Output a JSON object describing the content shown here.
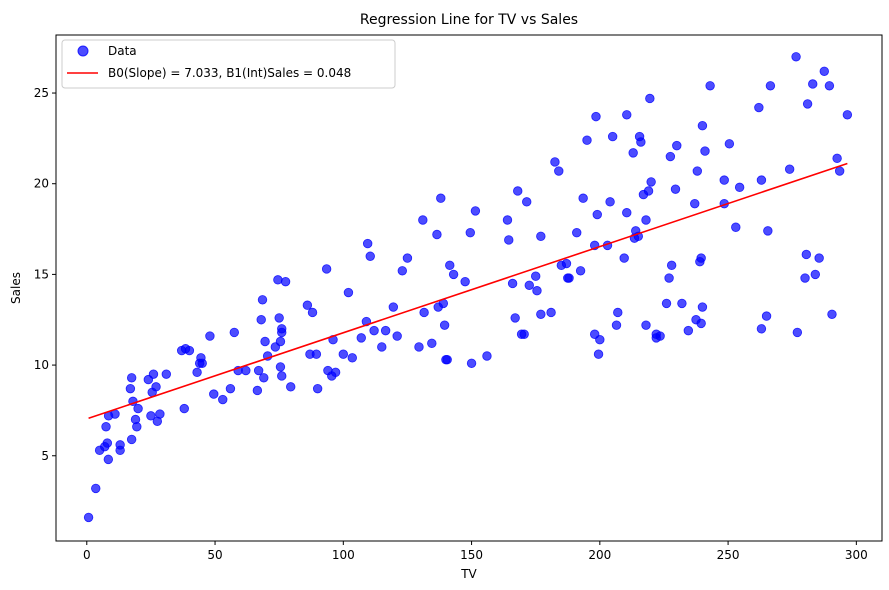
{
  "chart_data": {
    "type": "scatter",
    "title": "Regression Line for TV vs Sales",
    "xlabel": "TV",
    "ylabel": "Sales",
    "xlim": [
      -12,
      310
    ],
    "ylim": [
      0.3,
      28.2
    ],
    "xticks": [
      0,
      50,
      100,
      150,
      200,
      250,
      300
    ],
    "yticks": [
      5,
      10,
      15,
      20,
      25
    ],
    "grid": false,
    "legend_position": "top-left",
    "series": [
      {
        "name": "Data",
        "kind": "scatter",
        "color": "#0000ff",
        "points": [
          [
            0.7,
            1.6
          ],
          [
            3.5,
            3.2
          ],
          [
            5,
            5.3
          ],
          [
            7,
            5.5
          ],
          [
            7.5,
            6.6
          ],
          [
            8,
            5.7
          ],
          [
            8.4,
            4.8
          ],
          [
            8.5,
            7.2
          ],
          [
            11,
            7.3
          ],
          [
            13,
            5.3
          ],
          [
            13,
            5.6
          ],
          [
            17,
            8.7
          ],
          [
            17.5,
            9.3
          ],
          [
            17.5,
            5.9
          ],
          [
            18,
            8.0
          ],
          [
            19,
            7.0
          ],
          [
            19.5,
            6.6
          ],
          [
            20,
            7.6
          ],
          [
            24,
            9.2
          ],
          [
            25,
            7.2
          ],
          [
            25.5,
            8.5
          ],
          [
            26,
            9.5
          ],
          [
            27,
            8.8
          ],
          [
            27.5,
            6.9
          ],
          [
            28.5,
            7.3
          ],
          [
            31,
            9.5
          ],
          [
            37,
            10.8
          ],
          [
            38,
            7.6
          ],
          [
            38.5,
            10.9
          ],
          [
            40,
            10.8
          ],
          [
            43,
            9.6
          ],
          [
            44,
            10.1
          ],
          [
            44.5,
            10.4
          ],
          [
            45,
            10.1
          ],
          [
            48,
            11.6
          ],
          [
            49.5,
            8.4
          ],
          [
            53,
            8.1
          ],
          [
            56,
            8.7
          ],
          [
            57.5,
            11.8
          ],
          [
            59,
            9.7
          ],
          [
            62,
            9.7
          ],
          [
            66.5,
            8.6
          ],
          [
            67,
            9.7
          ],
          [
            68,
            12.5
          ],
          [
            68.5,
            13.6
          ],
          [
            69,
            9.3
          ],
          [
            69.5,
            11.3
          ],
          [
            70.5,
            10.5
          ],
          [
            73.5,
            11.0
          ],
          [
            74.5,
            14.7
          ],
          [
            75,
            12.6
          ],
          [
            75.5,
            11.3
          ],
          [
            75.5,
            9.9
          ],
          [
            76,
            9.4
          ],
          [
            76,
            11.8
          ],
          [
            76,
            12.0
          ],
          [
            77.5,
            14.6
          ],
          [
            79.5,
            8.8
          ],
          [
            86,
            13.3
          ],
          [
            87,
            10.6
          ],
          [
            88,
            12.9
          ],
          [
            89.5,
            10.6
          ],
          [
            90,
            8.7
          ],
          [
            93.5,
            15.3
          ],
          [
            94,
            9.7
          ],
          [
            95.5,
            9.4
          ],
          [
            96,
            11.4
          ],
          [
            97,
            9.6
          ],
          [
            100,
            10.6
          ],
          [
            102,
            14.0
          ],
          [
            103.5,
            10.4
          ],
          [
            107,
            11.5
          ],
          [
            109,
            12.4
          ],
          [
            109.5,
            16.7
          ],
          [
            110.5,
            16.0
          ],
          [
            112,
            11.9
          ],
          [
            115,
            11.0
          ],
          [
            116.5,
            11.9
          ],
          [
            119.5,
            13.2
          ],
          [
            121,
            11.6
          ],
          [
            123,
            15.2
          ],
          [
            125,
            15.9
          ],
          [
            129.5,
            11.0
          ],
          [
            131,
            18.0
          ],
          [
            131.5,
            12.9
          ],
          [
            134.5,
            11.2
          ],
          [
            136.5,
            17.2
          ],
          [
            137,
            13.2
          ],
          [
            138,
            19.2
          ],
          [
            139,
            13.4
          ],
          [
            139.5,
            12.2
          ],
          [
            140,
            10.3
          ],
          [
            140.5,
            10.3
          ],
          [
            141.5,
            15.5
          ],
          [
            143,
            15.0
          ],
          [
            147.5,
            14.6
          ],
          [
            149.5,
            17.3
          ],
          [
            150,
            10.1
          ],
          [
            151.5,
            18.5
          ],
          [
            156,
            10.5
          ],
          [
            164,
            18.0
          ],
          [
            164.5,
            16.9
          ],
          [
            166,
            14.5
          ],
          [
            167,
            12.6
          ],
          [
            168,
            19.6
          ],
          [
            169.5,
            11.7
          ],
          [
            170.5,
            11.7
          ],
          [
            171.5,
            19.0
          ],
          [
            172.5,
            14.4
          ],
          [
            175,
            14.9
          ],
          [
            175.5,
            14.1
          ],
          [
            177,
            17.1
          ],
          [
            177,
            12.8
          ],
          [
            181,
            12.9
          ],
          [
            182.5,
            21.2
          ],
          [
            184,
            20.7
          ],
          [
            185,
            15.5
          ],
          [
            187,
            15.6
          ],
          [
            187.5,
            14.8
          ],
          [
            188,
            14.8
          ],
          [
            191,
            17.3
          ],
          [
            192.5,
            15.2
          ],
          [
            193.5,
            19.2
          ],
          [
            195,
            22.4
          ],
          [
            198,
            11.7
          ],
          [
            198,
            16.6
          ],
          [
            198.5,
            23.7
          ],
          [
            199,
            18.3
          ],
          [
            199.5,
            10.6
          ],
          [
            200,
            11.4
          ],
          [
            203,
            16.6
          ],
          [
            204,
            19.0
          ],
          [
            205,
            22.6
          ],
          [
            206.5,
            12.2
          ],
          [
            207,
            12.9
          ],
          [
            209.5,
            15.9
          ],
          [
            210.5,
            23.8
          ],
          [
            210.5,
            18.4
          ],
          [
            213,
            21.7
          ],
          [
            213.5,
            17.0
          ],
          [
            214,
            17.4
          ],
          [
            215,
            17.1
          ],
          [
            215.5,
            22.6
          ],
          [
            216,
            22.3
          ],
          [
            217,
            19.4
          ],
          [
            218,
            18.0
          ],
          [
            218,
            12.2
          ],
          [
            219,
            19.6
          ],
          [
            219.5,
            24.7
          ],
          [
            220,
            20.1
          ],
          [
            222,
            11.7
          ],
          [
            222,
            11.5
          ],
          [
            223.5,
            11.6
          ],
          [
            226,
            13.4
          ],
          [
            227,
            14.8
          ],
          [
            227.5,
            21.5
          ],
          [
            228,
            15.5
          ],
          [
            229.5,
            19.7
          ],
          [
            230,
            22.1
          ],
          [
            232,
            13.4
          ],
          [
            234.5,
            11.9
          ],
          [
            237,
            18.9
          ],
          [
            237.5,
            12.5
          ],
          [
            238,
            20.7
          ],
          [
            239,
            15.7
          ],
          [
            239.5,
            15.9
          ],
          [
            239.5,
            12.3
          ],
          [
            240,
            13.2
          ],
          [
            240,
            23.2
          ],
          [
            241,
            21.8
          ],
          [
            243,
            25.4
          ],
          [
            248.5,
            20.2
          ],
          [
            248.5,
            18.9
          ],
          [
            250.5,
            22.2
          ],
          [
            253,
            17.6
          ],
          [
            254.5,
            19.8
          ],
          [
            262,
            24.2
          ],
          [
            263,
            20.2
          ],
          [
            263,
            12.0
          ],
          [
            265,
            12.7
          ],
          [
            265.5,
            17.4
          ],
          [
            266.5,
            25.4
          ],
          [
            274,
            20.8
          ],
          [
            276.5,
            27.0
          ],
          [
            277,
            11.8
          ],
          [
            280,
            14.8
          ],
          [
            280.5,
            16.1
          ],
          [
            281,
            24.4
          ],
          [
            283,
            25.5
          ],
          [
            284,
            15.0
          ],
          [
            285.5,
            15.9
          ],
          [
            287.5,
            26.2
          ],
          [
            289.5,
            25.4
          ],
          [
            290.5,
            12.8
          ],
          [
            292.5,
            21.4
          ],
          [
            293.5,
            20.7
          ],
          [
            296.5,
            23.8
          ]
        ]
      },
      {
        "name": "B0(Slope) = 7.033, B1(Int)Sales = 0.048",
        "kind": "line",
        "color": "#ff0000",
        "intercept": 7.033,
        "slope": 0.0475,
        "x_range": [
          0.7,
          296.5
        ]
      }
    ]
  }
}
